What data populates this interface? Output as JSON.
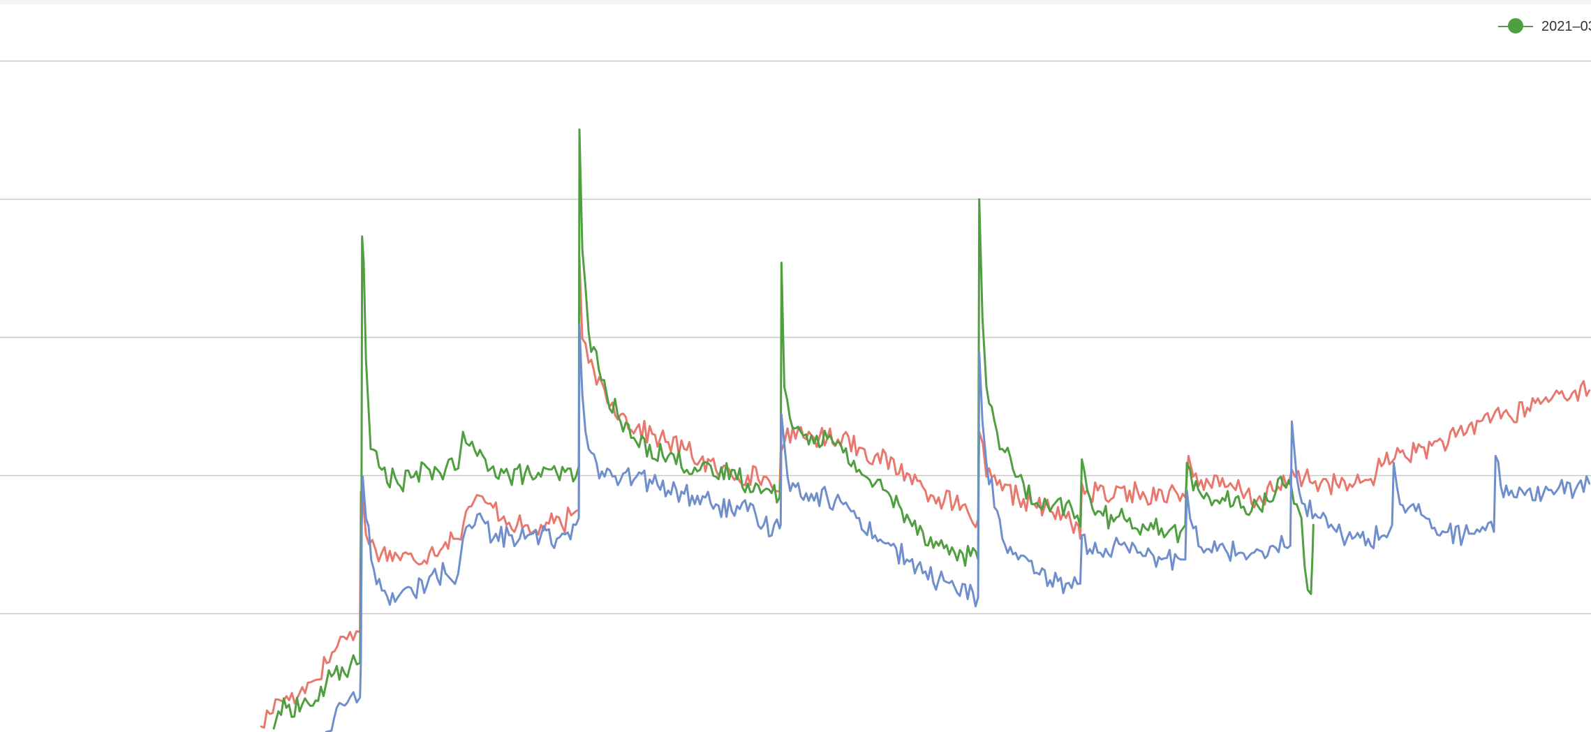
{
  "chart_data": {
    "type": "line",
    "title": "",
    "xlabel": "",
    "ylabel": "",
    "grid": true,
    "legend_position": "top-right",
    "legend_items": [
      {
        "label": "2021–03",
        "color": "#4f9e3f"
      }
    ],
    "x_range": [
      0,
      1
    ],
    "ylim": [
      0,
      1
    ],
    "series": [
      {
        "color": "#e8786e",
        "points": [
          [
            0.1642,
            0.008
          ],
          [
            0.175,
            0.047
          ],
          [
            0.178,
            0.044
          ],
          [
            0.18,
            0.052
          ],
          [
            0.187,
            0.05
          ],
          [
            0.19,
            0.065
          ],
          [
            0.197,
            0.074
          ],
          [
            0.212,
            0.124
          ],
          [
            0.216,
            0.138
          ],
          [
            0.22,
            0.145
          ],
          [
            0.224,
            0.146
          ],
          [
            0.2263,
            0.145
          ],
          [
            0.2268,
            0.348
          ],
          [
            0.2282,
            0.335
          ],
          [
            0.23,
            0.286
          ],
          [
            0.232,
            0.272
          ],
          [
            0.24,
            0.26
          ],
          [
            0.25,
            0.255
          ],
          [
            0.26,
            0.25
          ],
          [
            0.27,
            0.26
          ],
          [
            0.28,
            0.275
          ],
          [
            0.285,
            0.28
          ],
          [
            0.288,
            0.28
          ],
          [
            0.293,
            0.32
          ],
          [
            0.298,
            0.335
          ],
          [
            0.305,
            0.333
          ],
          [
            0.31,
            0.325
          ],
          [
            0.325,
            0.3
          ],
          [
            0.335,
            0.29
          ],
          [
            0.345,
            0.302
          ],
          [
            0.353,
            0.3
          ],
          [
            0.359,
            0.314
          ],
          [
            0.362,
            0.32
          ],
          [
            0.3638,
            0.322
          ],
          [
            0.3642,
            0.688
          ],
          [
            0.366,
            0.57
          ],
          [
            0.37,
            0.535
          ],
          [
            0.38,
            0.496
          ],
          [
            0.39,
            0.46
          ],
          [
            0.4,
            0.44
          ],
          [
            0.42,
            0.42
          ],
          [
            0.43,
            0.41
          ],
          [
            0.45,
            0.38
          ],
          [
            0.47,
            0.372
          ],
          [
            0.48,
            0.37
          ],
          [
            0.487,
            0.35
          ],
          [
            0.49,
            0.348
          ],
          [
            0.4907,
            0.405
          ],
          [
            0.495,
            0.44
          ],
          [
            0.5,
            0.425
          ],
          [
            0.51,
            0.43
          ],
          [
            0.52,
            0.425
          ],
          [
            0.53,
            0.43
          ],
          [
            0.54,
            0.412
          ],
          [
            0.55,
            0.4
          ],
          [
            0.57,
            0.375
          ],
          [
            0.58,
            0.355
          ],
          [
            0.59,
            0.34
          ],
          [
            0.6,
            0.33
          ],
          [
            0.61,
            0.31
          ],
          [
            0.6148,
            0.308
          ],
          [
            0.6155,
            0.435
          ],
          [
            0.62,
            0.37
          ],
          [
            0.63,
            0.35
          ],
          [
            0.64,
            0.34
          ],
          [
            0.65,
            0.33
          ],
          [
            0.66,
            0.32
          ],
          [
            0.67,
            0.31
          ],
          [
            0.678,
            0.298
          ],
          [
            0.679,
            0.28
          ],
          [
            0.68,
            0.36
          ],
          [
            0.685,
            0.34
          ],
          [
            0.69,
            0.35
          ],
          [
            0.7,
            0.34
          ],
          [
            0.71,
            0.35
          ],
          [
            0.72,
            0.34
          ],
          [
            0.73,
            0.35
          ],
          [
            0.74,
            0.345
          ],
          [
            0.745,
            0.34
          ],
          [
            0.747,
            0.4
          ],
          [
            0.75,
            0.37
          ],
          [
            0.76,
            0.36
          ],
          [
            0.77,
            0.355
          ],
          [
            0.78,
            0.35
          ],
          [
            0.79,
            0.335
          ],
          [
            0.8,
            0.35
          ],
          [
            0.81,
            0.36
          ],
          [
            0.812,
            0.38
          ],
          [
            0.814,
            0.37
          ],
          [
            0.82,
            0.37
          ],
          [
            0.83,
            0.36
          ],
          [
            0.84,
            0.36
          ],
          [
            0.85,
            0.355
          ],
          [
            0.86,
            0.365
          ],
          [
            0.87,
            0.39
          ],
          [
            0.88,
            0.405
          ],
          [
            0.89,
            0.405
          ],
          [
            0.9,
            0.415
          ],
          [
            0.92,
            0.43
          ],
          [
            0.93,
            0.45
          ],
          [
            0.94,
            0.465
          ],
          [
            0.95,
            0.455
          ],
          [
            0.96,
            0.47
          ],
          [
            0.97,
            0.48
          ],
          [
            0.98,
            0.49
          ],
          [
            0.99,
            0.495
          ],
          [
            0.999,
            0.495
          ]
        ]
      },
      {
        "color": "#4f9e3f",
        "points": [
          [
            0.1721,
            0.005
          ],
          [
            0.175,
            0.03
          ],
          [
            0.18,
            0.035
          ],
          [
            0.19,
            0.04
          ],
          [
            0.2,
            0.045
          ],
          [
            0.205,
            0.07
          ],
          [
            0.21,
            0.085
          ],
          [
            0.22,
            0.095
          ],
          [
            0.2263,
            0.1
          ],
          [
            0.2268,
            0.25
          ],
          [
            0.2272,
            0.322
          ],
          [
            0.2276,
            0.718
          ],
          [
            0.2286,
            0.68
          ],
          [
            0.23,
            0.54
          ],
          [
            0.233,
            0.41
          ],
          [
            0.24,
            0.38
          ],
          [
            0.25,
            0.36
          ],
          [
            0.26,
            0.37
          ],
          [
            0.27,
            0.38
          ],
          [
            0.28,
            0.38
          ],
          [
            0.288,
            0.382
          ],
          [
            0.291,
            0.435
          ],
          [
            0.295,
            0.415
          ],
          [
            0.3,
            0.4
          ],
          [
            0.31,
            0.385
          ],
          [
            0.32,
            0.37
          ],
          [
            0.33,
            0.375
          ],
          [
            0.34,
            0.37
          ],
          [
            0.35,
            0.375
          ],
          [
            0.362,
            0.37
          ],
          [
            0.3638,
            0.385
          ],
          [
            0.3642,
            0.873
          ],
          [
            0.366,
            0.7
          ],
          [
            0.37,
            0.58
          ],
          [
            0.378,
            0.51
          ],
          [
            0.39,
            0.45
          ],
          [
            0.4,
            0.42
          ],
          [
            0.42,
            0.4
          ],
          [
            0.44,
            0.38
          ],
          [
            0.45,
            0.37
          ],
          [
            0.46,
            0.38
          ],
          [
            0.47,
            0.36
          ],
          [
            0.48,
            0.35
          ],
          [
            0.49,
            0.34
          ],
          [
            0.4907,
            0.37
          ],
          [
            0.4912,
            0.68
          ],
          [
            0.493,
            0.5
          ],
          [
            0.5,
            0.44
          ],
          [
            0.51,
            0.43
          ],
          [
            0.52,
            0.425
          ],
          [
            0.53,
            0.405
          ],
          [
            0.54,
            0.38
          ],
          [
            0.55,
            0.36
          ],
          [
            0.56,
            0.34
          ],
          [
            0.57,
            0.315
          ],
          [
            0.58,
            0.29
          ],
          [
            0.59,
            0.27
          ],
          [
            0.6,
            0.26
          ],
          [
            0.61,
            0.255
          ],
          [
            0.6148,
            0.25
          ],
          [
            0.6155,
            0.772
          ],
          [
            0.6175,
            0.6
          ],
          [
            0.62,
            0.5
          ],
          [
            0.63,
            0.41
          ],
          [
            0.64,
            0.37
          ],
          [
            0.65,
            0.33
          ],
          [
            0.66,
            0.32
          ],
          [
            0.67,
            0.33
          ],
          [
            0.679,
            0.298
          ],
          [
            0.68,
            0.395
          ],
          [
            0.685,
            0.34
          ],
          [
            0.69,
            0.32
          ],
          [
            0.7,
            0.305
          ],
          [
            0.71,
            0.31
          ],
          [
            0.72,
            0.295
          ],
          [
            0.73,
            0.295
          ],
          [
            0.742,
            0.29
          ],
          [
            0.745,
            0.3
          ],
          [
            0.746,
            0.39
          ],
          [
            0.75,
            0.35
          ],
          [
            0.76,
            0.34
          ],
          [
            0.77,
            0.335
          ],
          [
            0.78,
            0.325
          ],
          [
            0.79,
            0.33
          ],
          [
            0.8,
            0.335
          ],
          [
            0.805,
            0.37
          ],
          [
            0.81,
            0.365
          ],
          [
            0.815,
            0.33
          ],
          [
            0.818,
            0.31
          ],
          [
            0.82,
            0.24
          ],
          [
            0.824,
            0.2
          ],
          [
            0.825,
            0.26
          ],
          [
            0.8255,
            0.3
          ]
        ]
      },
      {
        "color": "#6f8fcc",
        "points": [
          [
            0.205,
            0.0
          ],
          [
            0.21,
            0.02
          ],
          [
            0.215,
            0.04
          ],
          [
            0.22,
            0.05
          ],
          [
            0.2263,
            0.05
          ],
          [
            0.2268,
            0.1
          ],
          [
            0.2274,
            0.3
          ],
          [
            0.228,
            0.37
          ],
          [
            0.23,
            0.31
          ],
          [
            0.235,
            0.235
          ],
          [
            0.24,
            0.205
          ],
          [
            0.25,
            0.195
          ],
          [
            0.26,
            0.2
          ],
          [
            0.27,
            0.225
          ],
          [
            0.28,
            0.23
          ],
          [
            0.288,
            0.23
          ],
          [
            0.291,
            0.28
          ],
          [
            0.295,
            0.3
          ],
          [
            0.3,
            0.315
          ],
          [
            0.31,
            0.28
          ],
          [
            0.32,
            0.285
          ],
          [
            0.33,
            0.28
          ],
          [
            0.34,
            0.285
          ],
          [
            0.35,
            0.28
          ],
          [
            0.362,
            0.3
          ],
          [
            0.3638,
            0.31
          ],
          [
            0.3642,
            0.59
          ],
          [
            0.366,
            0.49
          ],
          [
            0.37,
            0.41
          ],
          [
            0.38,
            0.37
          ],
          [
            0.39,
            0.365
          ],
          [
            0.4,
            0.37
          ],
          [
            0.41,
            0.36
          ],
          [
            0.42,
            0.35
          ],
          [
            0.43,
            0.345
          ],
          [
            0.45,
            0.33
          ],
          [
            0.46,
            0.32
          ],
          [
            0.47,
            0.32
          ],
          [
            0.48,
            0.3
          ],
          [
            0.49,
            0.295
          ],
          [
            0.4907,
            0.3
          ],
          [
            0.4912,
            0.46
          ],
          [
            0.495,
            0.37
          ],
          [
            0.5,
            0.355
          ],
          [
            0.51,
            0.345
          ],
          [
            0.52,
            0.34
          ],
          [
            0.53,
            0.33
          ],
          [
            0.54,
            0.31
          ],
          [
            0.55,
            0.285
          ],
          [
            0.56,
            0.27
          ],
          [
            0.57,
            0.25
          ],
          [
            0.58,
            0.23
          ],
          [
            0.59,
            0.22
          ],
          [
            0.6,
            0.21
          ],
          [
            0.6148,
            0.195
          ],
          [
            0.6155,
            0.55
          ],
          [
            0.6175,
            0.45
          ],
          [
            0.62,
            0.39
          ],
          [
            0.63,
            0.28
          ],
          [
            0.64,
            0.25
          ],
          [
            0.65,
            0.23
          ],
          [
            0.66,
            0.22
          ],
          [
            0.67,
            0.215
          ],
          [
            0.679,
            0.215
          ],
          [
            0.68,
            0.285
          ],
          [
            0.685,
            0.265
          ],
          [
            0.69,
            0.26
          ],
          [
            0.7,
            0.27
          ],
          [
            0.71,
            0.26
          ],
          [
            0.72,
            0.255
          ],
          [
            0.73,
            0.25
          ],
          [
            0.742,
            0.25
          ],
          [
            0.745,
            0.25
          ],
          [
            0.746,
            0.35
          ],
          [
            0.75,
            0.295
          ],
          [
            0.76,
            0.265
          ],
          [
            0.77,
            0.265
          ],
          [
            0.78,
            0.26
          ],
          [
            0.79,
            0.265
          ],
          [
            0.8,
            0.27
          ],
          [
            0.811,
            0.27
          ],
          [
            0.812,
            0.45
          ],
          [
            0.815,
            0.37
          ],
          [
            0.82,
            0.33
          ],
          [
            0.83,
            0.31
          ],
          [
            0.84,
            0.29
          ],
          [
            0.85,
            0.28
          ],
          [
            0.86,
            0.28
          ],
          [
            0.87,
            0.285
          ],
          [
            0.875,
            0.3
          ],
          [
            0.876,
            0.39
          ],
          [
            0.88,
            0.33
          ],
          [
            0.89,
            0.32
          ],
          [
            0.9,
            0.295
          ],
          [
            0.91,
            0.29
          ],
          [
            0.92,
            0.285
          ],
          [
            0.93,
            0.29
          ],
          [
            0.939,
            0.29
          ],
          [
            0.94,
            0.4
          ],
          [
            0.945,
            0.34
          ],
          [
            0.95,
            0.35
          ],
          [
            0.96,
            0.35
          ],
          [
            0.97,
            0.345
          ],
          [
            0.98,
            0.355
          ],
          [
            0.99,
            0.35
          ],
          [
            0.999,
            0.36
          ]
        ]
      }
    ]
  }
}
